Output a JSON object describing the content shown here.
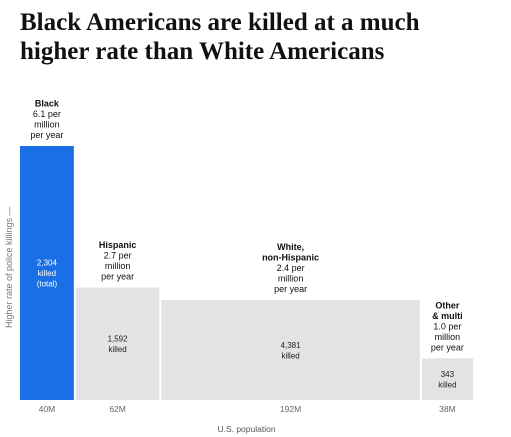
{
  "title": "Black Americans are killed at a much higher rate than White Americans",
  "chart_data": {
    "type": "bar",
    "variable_width": true,
    "title": "Black Americans are killed at a much higher rate than White Americans",
    "xlabel": "U.S. population",
    "ylabel": "Higher rate of police killings —",
    "categories": [
      "Black",
      "Hispanic",
      "White,\nnon-Hispanic",
      "Other\n& multi"
    ],
    "rate_labels": [
      "6.1 per\nmillion\nper year",
      "2.7 per\nmillion\nper year",
      "2.4 per\nmillion\nper year",
      "1.0 per\nmillion\nper year"
    ],
    "killed_labels": [
      "2,304\nkilled\n(total)",
      "1,592\nkilled",
      "4,381\nkilled",
      "343\nkilled"
    ],
    "population_labels": [
      "40M",
      "62M",
      "192M",
      "38M"
    ],
    "series": [
      {
        "values": [
          6.1,
          2.7,
          2.4,
          1.0
        ]
      }
    ],
    "population_millions": [
      40,
      62,
      192,
      38
    ],
    "killed": [
      2304,
      1592,
      4381,
      343
    ],
    "colors": {
      "highlight": "#1b6fe6",
      "default": "#e3e3e3",
      "highlight_text": "#ffffff",
      "default_text": "#222222"
    },
    "ylim": [
      0,
      6.1
    ],
    "grid": false,
    "legend": "none"
  }
}
